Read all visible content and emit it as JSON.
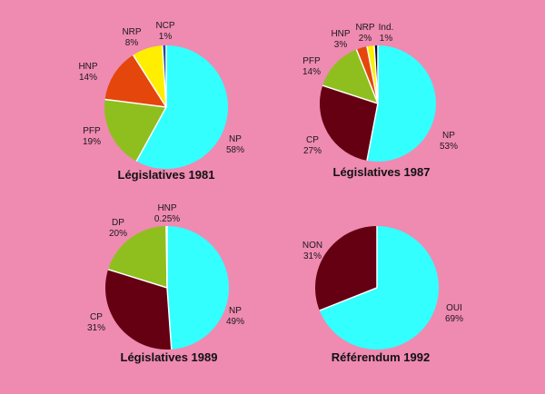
{
  "colors": {
    "background": "#ef8ab1",
    "NP": "#33ffff",
    "PFP": "#8fbf1e",
    "HNP": "#e5460c",
    "NRP": "#ffee00",
    "NCP": "#1c4d9e",
    "CP": "#640012",
    "Ind": "#0a0a2a",
    "DP": "#8fbf1e",
    "NON": "#640012",
    "OUI": "#33ffff"
  },
  "chart_data": [
    {
      "type": "pie",
      "title": "Législatives 1981",
      "slices": [
        {
          "name": "NP",
          "value": 58,
          "label": "58%",
          "color": "#33ffff"
        },
        {
          "name": "PFP",
          "value": 19,
          "label": "19%",
          "color": "#8fbf1e"
        },
        {
          "name": "HNP",
          "value": 14,
          "label": "14%",
          "color": "#e5460c"
        },
        {
          "name": "NRP",
          "value": 8,
          "label": "8%",
          "color": "#ffee00"
        },
        {
          "name": "NCP",
          "value": 1,
          "label": "1%",
          "color": "#1c4d9e"
        }
      ]
    },
    {
      "type": "pie",
      "title": "Législatives 1987",
      "slices": [
        {
          "name": "NP",
          "value": 53,
          "label": "53%",
          "color": "#33ffff"
        },
        {
          "name": "CP",
          "value": 27,
          "label": "27%",
          "color": "#640012"
        },
        {
          "name": "PFP",
          "value": 14,
          "label": "14%",
          "color": "#8fbf1e"
        },
        {
          "name": "HNP",
          "value": 3,
          "label": "3%",
          "color": "#e5460c"
        },
        {
          "name": "NRP",
          "value": 2,
          "label": "2%",
          "color": "#ffee00"
        },
        {
          "name": "Ind.",
          "value": 1,
          "label": "1%",
          "color": "#0a0a2a"
        }
      ]
    },
    {
      "type": "pie",
      "title": "Législatives 1989",
      "slices": [
        {
          "name": "NP",
          "value": 49,
          "label": "49%",
          "color": "#33ffff"
        },
        {
          "name": "CP",
          "value": 31,
          "label": "31%",
          "color": "#640012"
        },
        {
          "name": "DP",
          "value": 20,
          "label": "20%",
          "color": "#8fbf1e"
        },
        {
          "name": "HNP",
          "value": 0.25,
          "label": "0.25%",
          "color": "#1c4d9e"
        }
      ]
    },
    {
      "type": "pie",
      "title": "Référendum 1992",
      "slices": [
        {
          "name": "OUI",
          "value": 69,
          "label": "69%",
          "color": "#33ffff"
        },
        {
          "name": "NON",
          "value": 31,
          "label": "31%",
          "color": "#640012"
        }
      ]
    }
  ]
}
